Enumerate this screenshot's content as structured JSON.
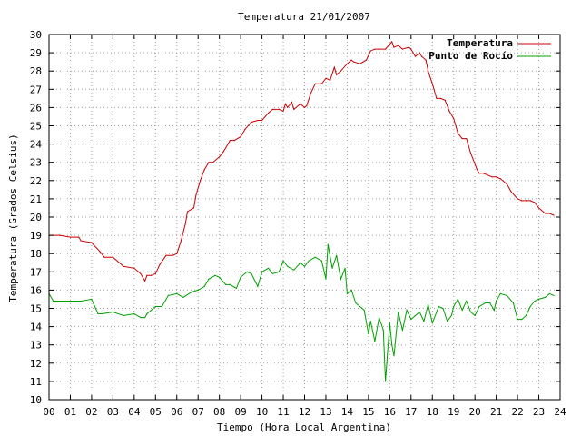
{
  "chart_data": {
    "type": "line",
    "title": "Temperatura 21/01/2007",
    "xlabel": "Tiempo (Hora Local Argentina)",
    "ylabel": "Temperatura (Grados Celsius)",
    "xlim": [
      0,
      24
    ],
    "ylim": [
      10,
      30
    ],
    "x_ticks": [
      "00",
      "01",
      "02",
      "03",
      "04",
      "05",
      "06",
      "07",
      "08",
      "09",
      "10",
      "11",
      "12",
      "13",
      "14",
      "15",
      "16",
      "17",
      "18",
      "19",
      "20",
      "21",
      "22",
      "23",
      "24"
    ],
    "y_ticks": [
      "10",
      "11",
      "12",
      "13",
      "14",
      "15",
      "16",
      "17",
      "18",
      "19",
      "20",
      "21",
      "22",
      "23",
      "24",
      "25",
      "26",
      "27",
      "28",
      "29",
      "30"
    ],
    "grid": true,
    "legend_position": "top-right",
    "series": [
      {
        "name": "Temperatura",
        "color": "#cc0000",
        "x": [
          0,
          0.5,
          1,
          1.4,
          1.5,
          2,
          2.4,
          2.6,
          3,
          3.3,
          3.5,
          4,
          4.3,
          4.5,
          4.6,
          4.8,
          5,
          5.2,
          5.5,
          5.8,
          6,
          6.2,
          6.4,
          6.5,
          6.8,
          6.9,
          7.1,
          7.3,
          7.5,
          7.7,
          8,
          8.2,
          8.5,
          8.7,
          9,
          9.2,
          9.5,
          9.8,
          10,
          10.3,
          10.5,
          10.8,
          11,
          11.1,
          11.2,
          11.4,
          11.5,
          11.8,
          12,
          12.1,
          12.3,
          12.5,
          12.8,
          13,
          13.2,
          13.4,
          13.5,
          13.7,
          14,
          14.2,
          14.3,
          14.6,
          14.9,
          15.1,
          15.3,
          15.5,
          15.8,
          16.1,
          16.2,
          16.4,
          16.6,
          16.9,
          17,
          17.2,
          17.4,
          17.5,
          17.7,
          17.8,
          18,
          18.2,
          18.4,
          18.6,
          18.8,
          19,
          19.2,
          19.4,
          19.6,
          19.8,
          20.1,
          20.2,
          20.4,
          20.6,
          20.8,
          21,
          21.2,
          21.5,
          21.7,
          22,
          22.2,
          22.4,
          22.6,
          22.8,
          23,
          23.3,
          23.5,
          23.7
        ],
        "values": [
          19.0,
          19.0,
          18.9,
          18.9,
          18.7,
          18.6,
          18.1,
          17.8,
          17.8,
          17.5,
          17.3,
          17.2,
          16.9,
          16.5,
          16.8,
          16.8,
          16.9,
          17.4,
          17.9,
          17.9,
          18.0,
          18.7,
          19.6,
          20.3,
          20.5,
          21.2,
          22.0,
          22.6,
          23.0,
          23.0,
          23.3,
          23.6,
          24.2,
          24.2,
          24.4,
          24.8,
          25.2,
          25.3,
          25.3,
          25.7,
          25.9,
          25.9,
          25.8,
          26.2,
          26.0,
          26.3,
          25.9,
          26.2,
          26.0,
          26.1,
          26.8,
          27.3,
          27.3,
          27.6,
          27.5,
          28.2,
          27.8,
          28.0,
          28.4,
          28.6,
          28.5,
          28.4,
          28.6,
          29.1,
          29.2,
          29.2,
          29.2,
          29.6,
          29.3,
          29.4,
          29.2,
          29.3,
          29.2,
          28.8,
          29.0,
          28.8,
          28.6,
          28.0,
          27.3,
          26.5,
          26.5,
          26.4,
          25.8,
          25.4,
          24.6,
          24.3,
          24.3,
          23.5,
          22.6,
          22.4,
          22.4,
          22.3,
          22.2,
          22.2,
          22.1,
          21.8,
          21.4,
          21.0,
          20.9,
          20.9,
          20.9,
          20.8,
          20.5,
          20.2,
          20.2,
          20.1
        ]
      },
      {
        "name": "Punto de Rocío",
        "color": "#00a000",
        "x": [
          0,
          0.2,
          0.5,
          1,
          1.5,
          2,
          2.3,
          2.5,
          3,
          3.5,
          4,
          4.3,
          4.5,
          4.6,
          5,
          5.3,
          5.6,
          6,
          6.3,
          6.7,
          7,
          7.3,
          7.5,
          7.8,
          8,
          8.3,
          8.5,
          8.8,
          9,
          9.3,
          9.5,
          9.8,
          10,
          10.3,
          10.5,
          10.8,
          11,
          11.2,
          11.5,
          11.8,
          12,
          12.2,
          12.5,
          12.8,
          13,
          13.1,
          13.3,
          13.5,
          13.7,
          13.9,
          14,
          14.2,
          14.4,
          14.6,
          14.8,
          15,
          15.1,
          15.3,
          15.5,
          15.7,
          15.8,
          16,
          16.1,
          16.2,
          16.4,
          16.6,
          16.8,
          17,
          17.2,
          17.4,
          17.6,
          17.8,
          18,
          18.3,
          18.5,
          18.7,
          18.9,
          19,
          19.2,
          19.4,
          19.6,
          19.8,
          20,
          20.2,
          20.5,
          20.7,
          20.9,
          21,
          21.2,
          21.5,
          21.8,
          22,
          22.2,
          22.4,
          22.6,
          22.8,
          23,
          23.3,
          23.5,
          23.7
        ],
        "values": [
          15.8,
          15.4,
          15.4,
          15.4,
          15.4,
          15.5,
          14.7,
          14.7,
          14.8,
          14.6,
          14.7,
          14.5,
          14.5,
          14.7,
          15.1,
          15.1,
          15.7,
          15.8,
          15.6,
          15.9,
          16.0,
          16.2,
          16.6,
          16.8,
          16.7,
          16.3,
          16.3,
          16.1,
          16.7,
          17.0,
          16.9,
          16.2,
          17.0,
          17.2,
          16.9,
          17.0,
          17.6,
          17.3,
          17.1,
          17.5,
          17.3,
          17.6,
          17.8,
          17.6,
          16.6,
          18.5,
          17.2,
          17.9,
          16.6,
          17.2,
          15.8,
          16.0,
          15.3,
          15.1,
          14.9,
          13.6,
          14.3,
          13.2,
          14.5,
          13.8,
          11.0,
          14.2,
          13.0,
          12.4,
          14.8,
          13.8,
          14.9,
          14.4,
          14.6,
          14.8,
          14.3,
          15.2,
          14.2,
          15.1,
          15.0,
          14.3,
          14.6,
          15.1,
          15.5,
          14.9,
          15.4,
          14.8,
          14.6,
          15.1,
          15.3,
          15.3,
          14.9,
          15.4,
          15.8,
          15.7,
          15.3,
          14.4,
          14.4,
          14.6,
          15.1,
          15.4,
          15.5,
          15.6,
          15.8,
          15.7
        ]
      }
    ]
  }
}
